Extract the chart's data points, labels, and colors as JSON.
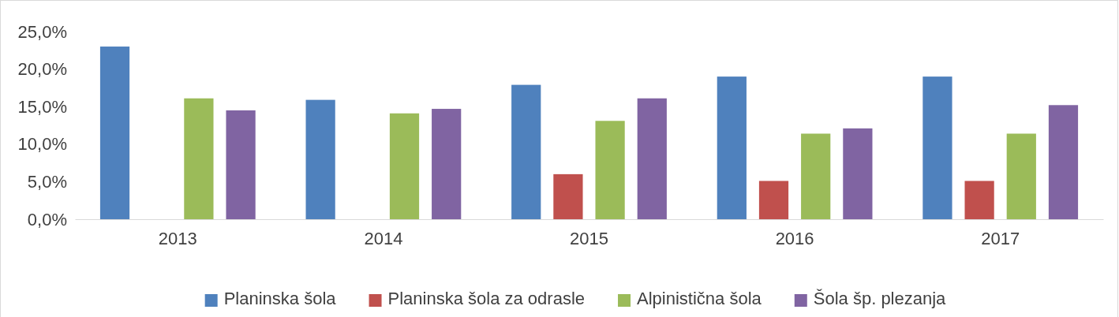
{
  "chart_data": {
    "type": "bar",
    "categories": [
      "2013",
      "2014",
      "2015",
      "2016",
      "2017"
    ],
    "series": [
      {
        "name": "Planinska šola",
        "color": "#4f81bd",
        "values": [
          23.0,
          15.9,
          17.9,
          19.0,
          19.0
        ]
      },
      {
        "name": "Planinska šola za odrasle",
        "color": "#c0504d",
        "values": [
          null,
          null,
          6.0,
          5.1,
          5.1
        ]
      },
      {
        "name": "Alpinistična šola",
        "color": "#9bbb59",
        "values": [
          16.1,
          14.1,
          13.1,
          11.4,
          11.4
        ]
      },
      {
        "name": "Šola šp. plezanja",
        "color": "#8064a2",
        "values": [
          14.5,
          14.7,
          16.1,
          12.1,
          15.2
        ]
      }
    ],
    "ylim": [
      0,
      25
    ],
    "yticks": [
      {
        "value": 0,
        "label": "0,0%"
      },
      {
        "value": 5,
        "label": "5,0%"
      },
      {
        "value": 10,
        "label": "10,0%"
      },
      {
        "value": 15,
        "label": "15,0%"
      },
      {
        "value": 20,
        "label": "20,0%"
      },
      {
        "value": 25,
        "label": "25,0%"
      }
    ],
    "grid": false,
    "legend": "bottom"
  }
}
